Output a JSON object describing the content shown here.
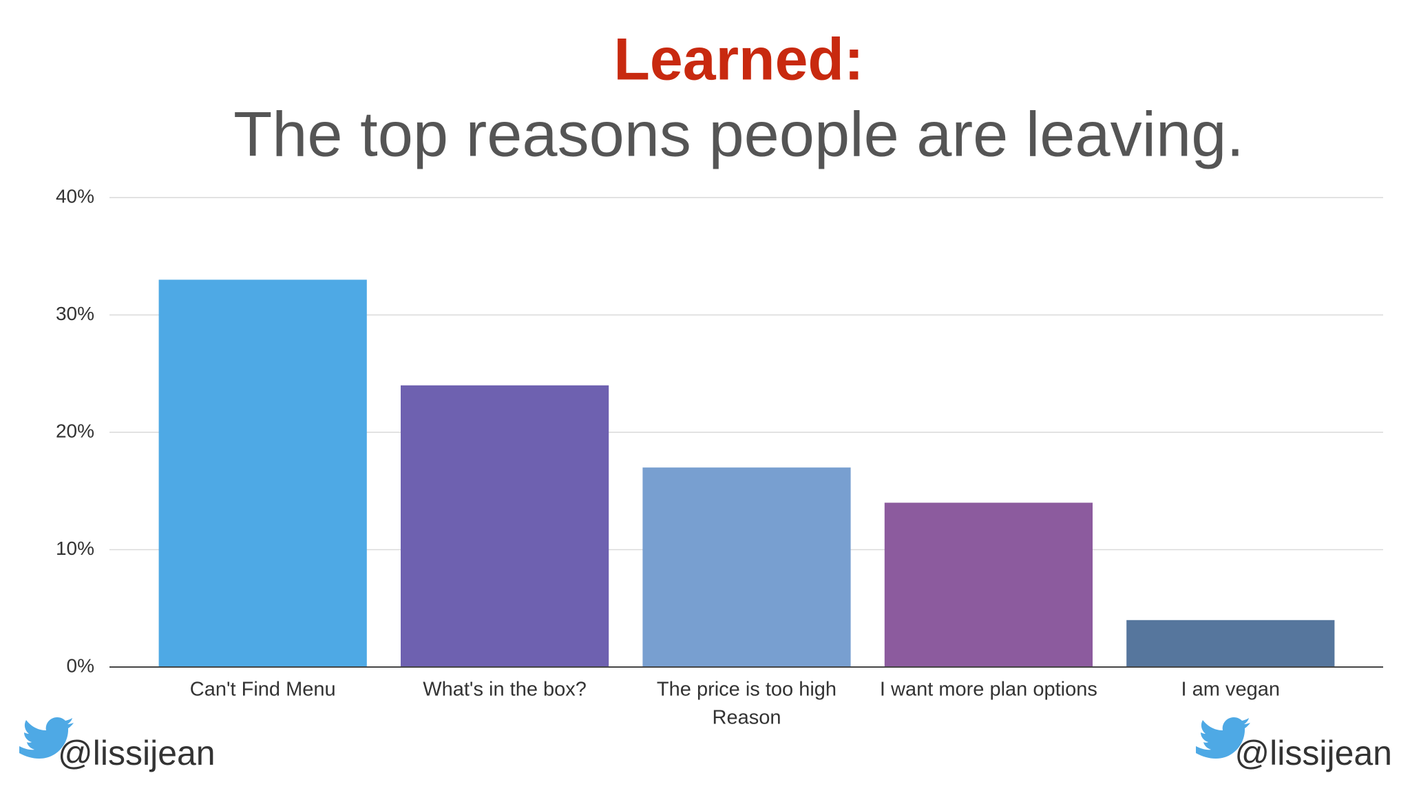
{
  "chart_data": {
    "type": "bar",
    "title": "Learned:",
    "subtitle": "The top reasons people are leaving.",
    "x_label": "Reason",
    "categories": [
      "Can't Find Menu",
      "What's in the box?",
      "The price is too high",
      "I want more plan options",
      "I am vegan"
    ],
    "values": [
      33,
      24,
      17,
      14,
      4
    ],
    "colors": [
      "#4ea9e5",
      "#6e61b0",
      "#789fd0",
      "#8c5b9e",
      "#56769d"
    ],
    "ylim": [
      0,
      40
    ],
    "yticks": [
      {
        "value": 0,
        "label": "0%"
      },
      {
        "value": 10,
        "label": "10%"
      },
      {
        "value": 20,
        "label": "20%"
      },
      {
        "value": 30,
        "label": "30%"
      },
      {
        "value": 40,
        "label": "40%"
      }
    ],
    "grid": true
  },
  "footer": {
    "handles": [
      "@lissijean",
      "@lissijean"
    ]
  }
}
